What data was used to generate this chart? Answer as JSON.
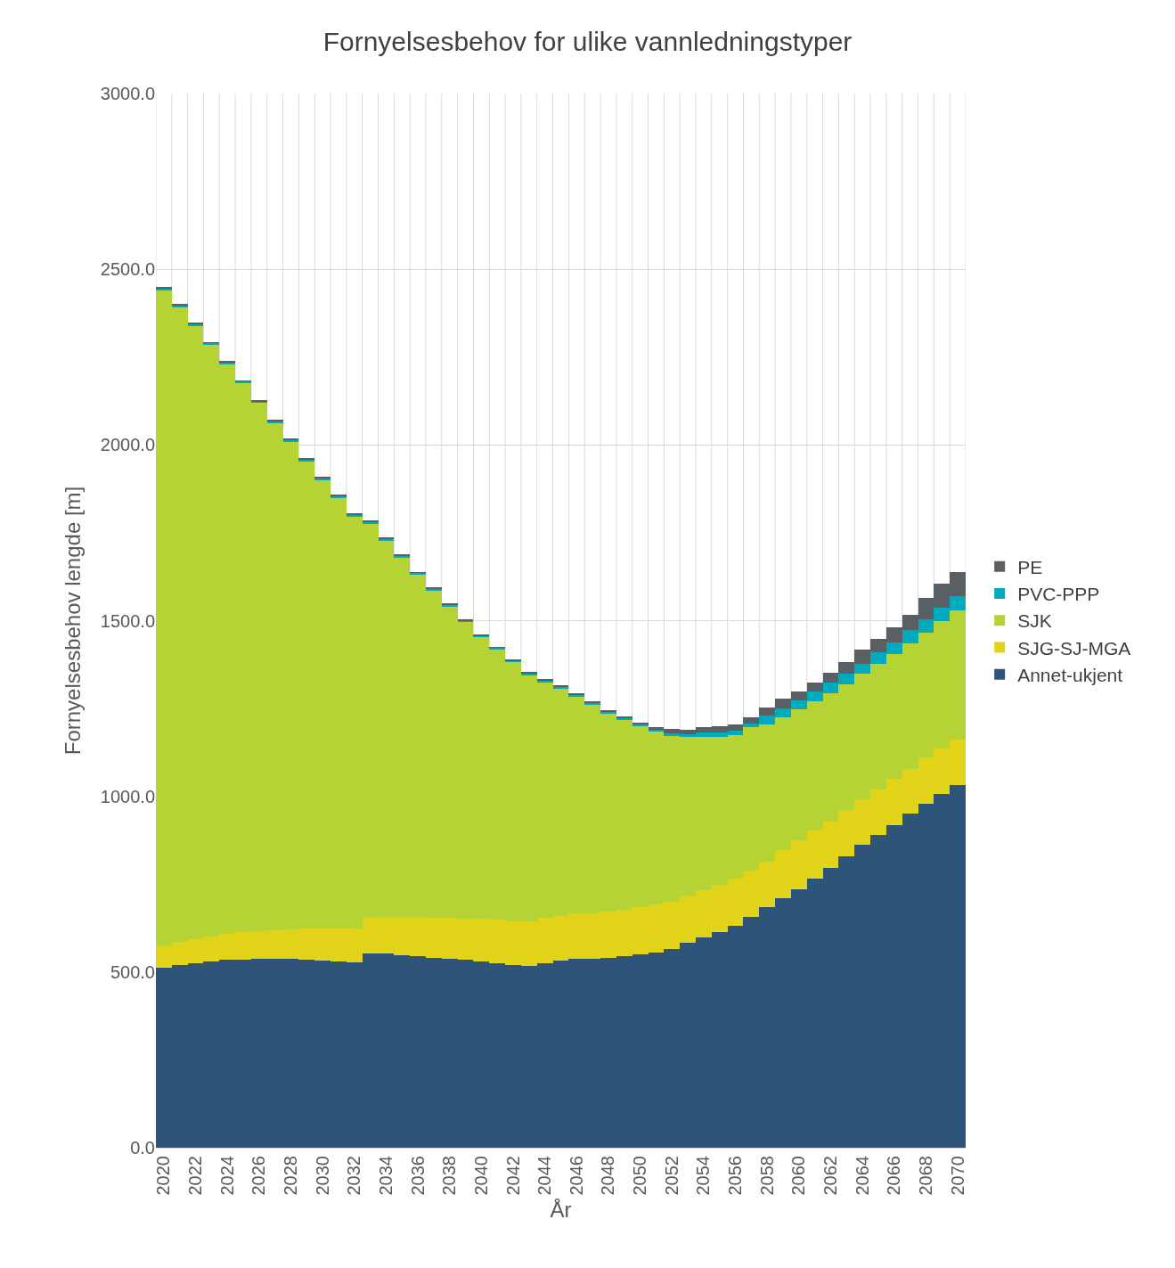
{
  "chart_data": {
    "type": "bar",
    "stacked": true,
    "title": "Fornyelsesbehov for ulike vannledningstyper",
    "xlabel": "År",
    "ylabel": "Fornyelsesbehov lengde [m]",
    "categories": [
      "2020",
      null,
      "2022",
      null,
      "2024",
      null,
      "2026",
      null,
      "2028",
      null,
      "2030",
      null,
      "2032",
      null,
      "2034",
      null,
      "2036",
      null,
      "2038",
      null,
      "2040",
      null,
      "2042",
      null,
      "2044",
      null,
      "2046",
      null,
      "2048",
      null,
      "2050",
      null,
      "2052",
      null,
      "2054",
      null,
      "2056",
      null,
      "2058",
      null,
      "2060",
      null,
      "2062",
      null,
      "2064",
      null,
      "2066",
      null,
      "2068",
      null,
      "2070"
    ],
    "ylim": [
      0,
      3000
    ],
    "yticks": [
      {
        "value": 0,
        "label": "0.0"
      },
      {
        "value": 500,
        "label": "500.0"
      },
      {
        "value": 1000,
        "label": "1000.0"
      },
      {
        "value": 1500,
        "label": "1500.0"
      },
      {
        "value": 2000,
        "label": "2000.0"
      },
      {
        "value": 2500,
        "label": "2500.0"
      },
      {
        "value": 3000,
        "label": "3000.0"
      }
    ],
    "grid": true,
    "legend": "right",
    "series": [
      {
        "name": "Annet-ukjent",
        "color": "#2e5479",
        "values": [
          512,
          520,
          525,
          530,
          535,
          535,
          537,
          537,
          537,
          535,
          532,
          530,
          527,
          553,
          553,
          548,
          545,
          540,
          537,
          535,
          530,
          525,
          520,
          517,
          525,
          532,
          537,
          537,
          540,
          545,
          550,
          555,
          565,
          583,
          598,
          614,
          632,
          657,
          685,
          711,
          736,
          767,
          797,
          828,
          861,
          889,
          919,
          950,
          978,
          1006,
          1031
        ]
      },
      {
        "name": "SJG-SJ-MGA",
        "color": "#e1d317",
        "values": [
          64,
          66,
          69,
          71,
          74,
          79,
          79,
          81,
          84,
          89,
          92,
          94,
          97,
          104,
          104,
          110,
          112,
          115,
          117,
          117,
          122,
          125,
          125,
          127,
          130,
          127,
          130,
          130,
          132,
          132,
          135,
          138,
          135,
          135,
          135,
          135,
          135,
          132,
          130,
          135,
          138,
          135,
          132,
          132,
          130,
          130,
          130,
          127,
          132,
          130,
          130
        ]
      },
      {
        "name": "SJK",
        "color": "#b5d334",
        "values": [
          1864,
          1806,
          1745,
          1683,
          1620,
          1561,
          1503,
          1444,
          1388,
          1329,
          1276,
          1225,
          1172,
          1118,
          1070,
          1021,
          973,
          930,
          886,
          843,
          800,
          767,
          736,
          700,
          670,
          647,
          616,
          593,
          563,
          540,
          514,
          492,
          474,
          453,
          435,
          420,
          407,
          407,
          390,
          379,
          374,
          369,
          364,
          359,
          357,
          357,
          357,
          359,
          357,
          362,
          367
        ]
      },
      {
        "name": "PVC-PPP",
        "color": "#00abbd",
        "values": [
          6,
          6,
          6,
          6,
          6,
          6,
          6,
          6,
          6,
          6,
          6,
          6,
          6,
          6,
          6,
          6,
          6,
          6,
          6,
          6,
          6,
          6,
          6,
          6,
          6,
          6,
          6,
          6,
          6,
          6,
          6,
          6,
          5,
          5,
          13,
          13,
          13,
          10,
          25,
          25,
          25,
          28,
          31,
          31,
          28,
          33,
          33,
          38,
          38,
          38,
          41
        ]
      },
      {
        "name": "PE",
        "color": "#595f63",
        "values": [
          2,
          2,
          2,
          2,
          2,
          2,
          2,
          2,
          2,
          2,
          2,
          2,
          2,
          2,
          2,
          2,
          2,
          2,
          2,
          2,
          2,
          2,
          2,
          2,
          2,
          2,
          2,
          2,
          2,
          5,
          5,
          5,
          13,
          13,
          15,
          18,
          18,
          18,
          23,
          28,
          25,
          25,
          28,
          31,
          41,
          38,
          41,
          43,
          59,
          69,
          69
        ]
      }
    ]
  }
}
